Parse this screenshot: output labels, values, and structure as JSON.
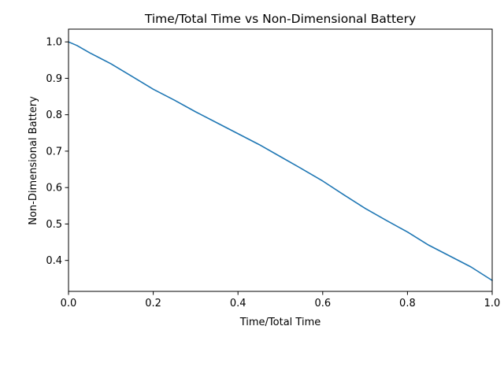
{
  "chart_data": {
    "type": "line",
    "title": "Time/Total Time vs Non-Dimensional Battery",
    "xlabel": "Time/Total Time",
    "ylabel": "Non-Dimensional Battery",
    "xlim": [
      0.0,
      1.0
    ],
    "ylim": [
      0.315,
      1.035
    ],
    "xticks": [
      "0.0",
      "0.2",
      "0.4",
      "0.6",
      "0.8",
      "1.0"
    ],
    "yticks": [
      "0.4",
      "0.5",
      "0.6",
      "0.7",
      "0.8",
      "0.9",
      "1.0"
    ],
    "grid": false,
    "series": [
      {
        "color": "#1f77b4",
        "x": [
          0.0,
          0.02,
          0.05,
          0.1,
          0.15,
          0.2,
          0.25,
          0.3,
          0.35,
          0.4,
          0.45,
          0.5,
          0.55,
          0.6,
          0.65,
          0.7,
          0.75,
          0.8,
          0.85,
          0.9,
          0.95,
          1.0
        ],
        "y": [
          1.0,
          0.99,
          0.97,
          0.94,
          0.905,
          0.87,
          0.84,
          0.808,
          0.778,
          0.748,
          0.718,
          0.685,
          0.652,
          0.618,
          0.58,
          0.543,
          0.51,
          0.478,
          0.442,
          0.412,
          0.382,
          0.345
        ]
      }
    ]
  }
}
